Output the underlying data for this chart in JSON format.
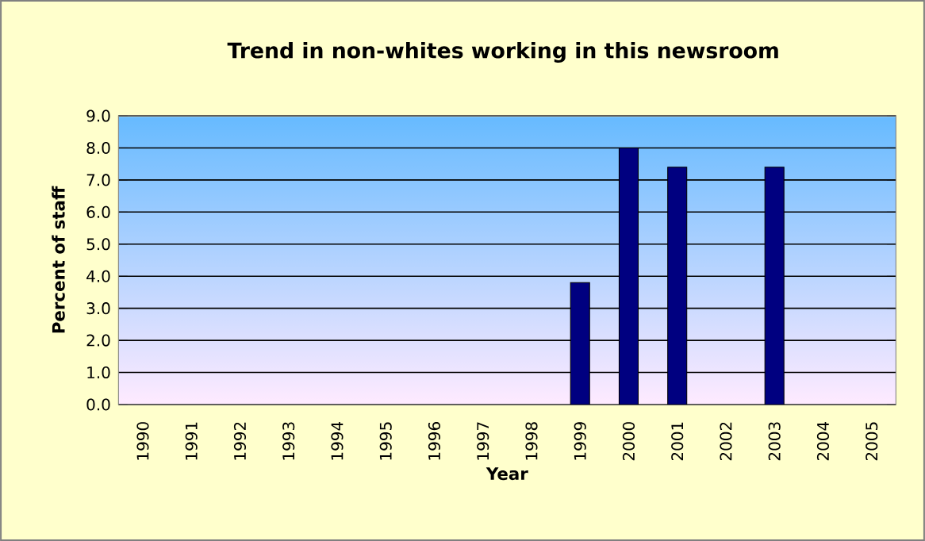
{
  "chart_data": {
    "type": "bar",
    "title": "Trend in non-whites working in this newsroom",
    "xlabel": "Year",
    "ylabel": "Percent of staff",
    "categories": [
      "1990",
      "1991",
      "1992",
      "1993",
      "1994",
      "1995",
      "1996",
      "1997",
      "1998",
      "1999",
      "2000",
      "2001",
      "2002",
      "2003",
      "2004",
      "2005"
    ],
    "values": [
      null,
      null,
      null,
      null,
      null,
      null,
      null,
      null,
      null,
      3.8,
      8.0,
      7.4,
      null,
      7.4,
      null,
      null
    ],
    "color": "#000080",
    "ylim": [
      0,
      9
    ],
    "yticks": [
      {
        "value": 0,
        "label": "0.0"
      },
      {
        "value": 1,
        "label": "1.0"
      },
      {
        "value": 2,
        "label": "2.0"
      },
      {
        "value": 3,
        "label": "3.0"
      },
      {
        "value": 4,
        "label": "4.0"
      },
      {
        "value": 5,
        "label": "5.0"
      },
      {
        "value": 6,
        "label": "6.0"
      },
      {
        "value": 7,
        "label": "7.0"
      },
      {
        "value": 8,
        "label": "8.0"
      },
      {
        "value": 9,
        "label": "9.0"
      }
    ],
    "grid": "y"
  }
}
